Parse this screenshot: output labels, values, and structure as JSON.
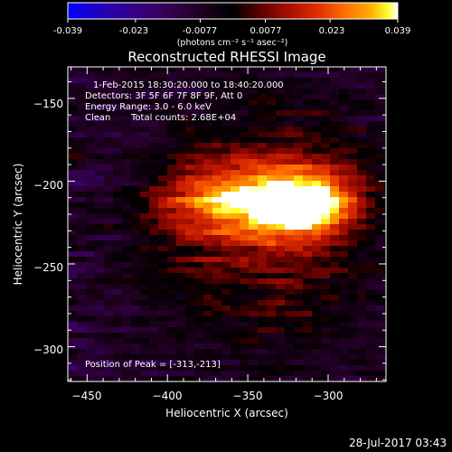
{
  "colorbar": {
    "min": -0.039,
    "max": 0.039,
    "tick_labels": [
      "-0.039",
      "-0.023",
      "-0.0077",
      "0.0077",
      "0.023",
      "0.039"
    ],
    "units": "(photons cm⁻² s⁻¹ asec⁻²)",
    "colormap": [
      "#0000ff",
      "#2a00b0",
      "#3a0060",
      "#200020",
      "#000000",
      "#5a0000",
      "#b01000",
      "#e03000",
      "#ff7000",
      "#ffb000",
      "#ffff30",
      "#ffffff"
    ]
  },
  "chart_data": {
    "type": "heatmap",
    "title": "Reconstructed RHESSI Image",
    "xlabel": "Heliocentric X (arcsec)",
    "ylabel": "Heliocentric Y (arcsec)",
    "xlim": [
      -462,
      -264
    ],
    "ylim": [
      -321,
      -131
    ],
    "x_tick_labels": [
      "−450",
      "−400",
      "−350",
      "−300"
    ],
    "y_tick_labels": [
      "−150",
      "−200",
      "−250",
      "−300"
    ],
    "peak": [
      -313,
      -213
    ],
    "annotations": {
      "time_range": "1-Feb-2015 18:30:20.000 to 18:40:20.000",
      "detectors": "Detectors: 3F 5F 6F 7F 8F 9F, Att 0",
      "energy": "Energy Range: 3.0 - 6.0 keV",
      "method": "Clean",
      "counts": "Total counts: 2.68E+04",
      "peak_label": "Position of Peak = [-313,-213]"
    }
  },
  "footer_timestamp": "28-Jul-2017 03:43"
}
